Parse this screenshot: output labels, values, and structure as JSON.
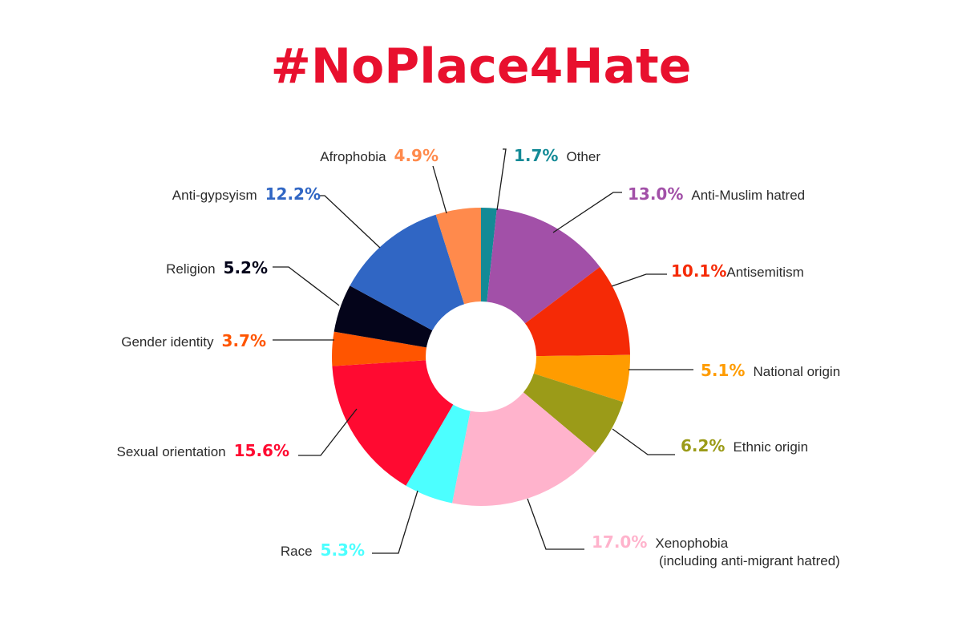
{
  "title": "#NoPlace4Hate",
  "colors": {
    "title": "#e8102e",
    "background": "#ffffff",
    "hole": "#ffffff"
  },
  "chart_data": {
    "type": "pie",
    "donut": true,
    "title": "#NoPlace4Hate",
    "unit": "%",
    "slices": [
      {
        "label": "Other",
        "value": 1.7,
        "display": "1.7%",
        "color": "#138a96"
      },
      {
        "label": "Anti-Muslim hatred",
        "value": 13.0,
        "display": "13.0%",
        "color": "#a250a8"
      },
      {
        "label": "Antisemitism",
        "value": 10.1,
        "display": "10.1%",
        "color": "#f52a06"
      },
      {
        "label": "National origin",
        "value": 5.1,
        "display": "5.1%",
        "color": "#ff9c00"
      },
      {
        "label": "Ethnic origin",
        "value": 6.2,
        "display": "6.2%",
        "color": "#9b9b18"
      },
      {
        "label": "Xenophobia",
        "label_line2": "(including anti-migrant hatred)",
        "value": 17.0,
        "display": "17.0%",
        "color": "#ffb3cc"
      },
      {
        "label": "Race",
        "value": 5.3,
        "display": "5.3%",
        "color": "#4cffff"
      },
      {
        "label": "Sexual orientation",
        "value": 15.6,
        "display": "15.6%",
        "color": "#ff0a31"
      },
      {
        "label": "Gender identity",
        "value": 3.7,
        "display": "3.7%",
        "color": "#ff5500"
      },
      {
        "label": "Religion",
        "value": 5.2,
        "display": "5.2%",
        "color": "#04041a"
      },
      {
        "label": "Anti-gypsyism",
        "value": 12.2,
        "display": "12.2%",
        "color": "#3066c4"
      },
      {
        "label": "Afrophobia",
        "value": 4.9,
        "display": "4.9%",
        "color": "#ff8a4c"
      }
    ]
  }
}
